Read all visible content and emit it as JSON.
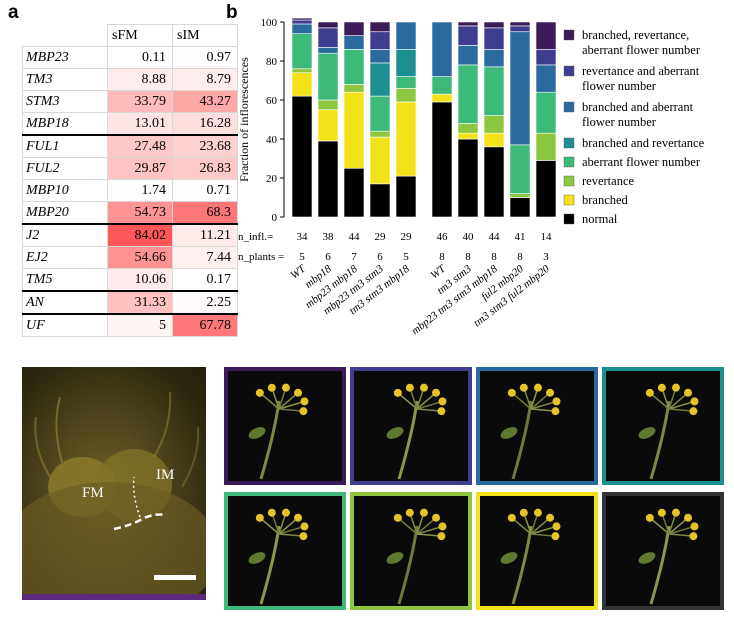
{
  "panel_a": {
    "letter": "a",
    "columns": [
      "sFM",
      "sIM"
    ],
    "rows": [
      {
        "gene": "MBP23",
        "sFM": "0.11",
        "sIM": "0.97",
        "sep": false
      },
      {
        "gene": "TM3",
        "sFM": "8.88",
        "sIM": "8.79",
        "sep": false
      },
      {
        "gene": "STM3",
        "sFM": "33.79",
        "sIM": "43.27",
        "sep": false
      },
      {
        "gene": "MBP18",
        "sFM": "13.01",
        "sIM": "16.28",
        "sep": false
      },
      {
        "gene": "FUL1",
        "sFM": "27.48",
        "sIM": "23.68",
        "sep": true
      },
      {
        "gene": "FUL2",
        "sFM": "29.87",
        "sIM": "26.83",
        "sep": false
      },
      {
        "gene": "MBP10",
        "sFM": "1.74",
        "sIM": "0.71",
        "sep": false
      },
      {
        "gene": "MBP20",
        "sFM": "54.73",
        "sIM": "68.3",
        "sep": false
      },
      {
        "gene": "J2",
        "sFM": "84.02",
        "sIM": "11.21",
        "sep": true
      },
      {
        "gene": "EJ2",
        "sFM": "54.66",
        "sIM": "7.44",
        "sep": false
      },
      {
        "gene": "TM5",
        "sFM": "10.06",
        "sIM": "0.17",
        "sep": false
      },
      {
        "gene": "AN",
        "sFM": "31.33",
        "sIM": "2.25",
        "sep": true
      },
      {
        "gene": "UF",
        "sFM": "5",
        "sIM": "67.78",
        "sep": true
      }
    ]
  },
  "panel_b": {
    "letter": "b"
  },
  "chart_data": {
    "type": "bar",
    "stacked": true,
    "ylabel": "Fraction of inflorescences",
    "ylim": [
      0,
      100
    ],
    "yticks": [
      0,
      20,
      40,
      60,
      80,
      100
    ],
    "categories": [
      "WT",
      "mbp18",
      "mbp23 mbp18",
      "mbp23 tm3 stm3",
      "tm3 stm3 mbp18",
      "WT",
      "tm3 stm3",
      "mbp23 tm3 stm3 mbp18",
      "ful2 mbp20",
      "tm3 stm3 ful2 mbp20"
    ],
    "groups": [
      [
        0,
        1,
        2,
        3,
        4
      ],
      [
        5,
        6,
        7,
        8,
        9
      ]
    ],
    "n_infl_label": "n_infl.=",
    "n_plants_label": "n_plants =",
    "n_infl": [
      "34",
      "38",
      "44",
      "29",
      "29",
      "46",
      "40",
      "44",
      "41",
      "14"
    ],
    "n_plants": [
      "5",
      "6",
      "7",
      "6",
      "5",
      "8",
      "8",
      "8",
      "8",
      "3"
    ],
    "series": [
      {
        "name": "normal",
        "color": "#000000",
        "values": [
          62,
          39,
          25,
          17,
          21,
          59,
          40,
          36,
          10,
          29
        ]
      },
      {
        "name": "branched",
        "color": "#f2e21a",
        "values": [
          12,
          16,
          39,
          24,
          38,
          4,
          3,
          7,
          0,
          0
        ]
      },
      {
        "name": "revertance",
        "color": "#8dc63f",
        "values": [
          2,
          5,
          4,
          3,
          7,
          0,
          5,
          9,
          2,
          14
        ]
      },
      {
        "name": "aberrant flower number",
        "color": "#3dba7a",
        "values": [
          18,
          24,
          18,
          18,
          6,
          9,
          30,
          25,
          25,
          21
        ]
      },
      {
        "name": "branched and revertance",
        "color": "#1d8f91",
        "values": [
          0,
          0,
          0,
          17,
          14,
          0,
          0,
          0,
          0,
          0
        ]
      },
      {
        "name": "branched and aberrant flower number",
        "color": "#2b6a9e",
        "values": [
          5,
          3,
          7,
          7,
          14,
          28,
          10,
          9,
          58,
          14
        ]
      },
      {
        "name": "revertance and aberrant flower number",
        "color": "#3e3d8f",
        "values": [
          2,
          10,
          0,
          9,
          0,
          0,
          10,
          11,
          3,
          8
        ]
      },
      {
        "name": "branched, revertance, aberrant flower number",
        "color": "#3a1b57",
        "values": [
          1,
          3,
          7,
          5,
          0,
          0,
          2,
          3,
          2,
          14
        ]
      }
    ]
  },
  "legend": [
    {
      "lines": [
        "branched, revertance,",
        "aberrant flower number"
      ],
      "color": "#3a1b57"
    },
    {
      "lines": [
        "revertance and aberrant",
        "flower number"
      ],
      "color": "#3e3d8f"
    },
    {
      "lines": [
        "branched and aberrant",
        "flower number"
      ],
      "color": "#2b6a9e"
    },
    {
      "lines": [
        "branched and revertance"
      ],
      "color": "#1d8f91"
    },
    {
      "lines": [
        "aberrant flower number"
      ],
      "color": "#3dba7a"
    },
    {
      "lines": [
        "revertance"
      ],
      "color": "#8dc63f"
    },
    {
      "lines": [
        "branched"
      ],
      "color": "#f2e21a"
    },
    {
      "lines": [
        "normal"
      ],
      "color": "#000000"
    }
  ],
  "meristem_photo": {
    "fm_label": "FM",
    "im_label": "IM",
    "bar_color": "#5b2a7a"
  },
  "inflorescence_photos": [
    {
      "category": "branched, revertance, aberrant flower number",
      "border_color": "#3a1b57"
    },
    {
      "category": "revertance and aberrant flower number",
      "border_color": "#3e3d8f"
    },
    {
      "category": "branched and aberrant flower number",
      "border_color": "#2b6a9e"
    },
    {
      "category": "branched and revertance",
      "border_color": "#1d8f91"
    },
    {
      "category": "aberrant flower number",
      "border_color": "#3dba7a"
    },
    {
      "category": "revertance",
      "border_color": "#8dc63f"
    },
    {
      "category": "branched",
      "border_color": "#f2e21a"
    },
    {
      "category": "normal",
      "border_color": "#333333"
    }
  ]
}
